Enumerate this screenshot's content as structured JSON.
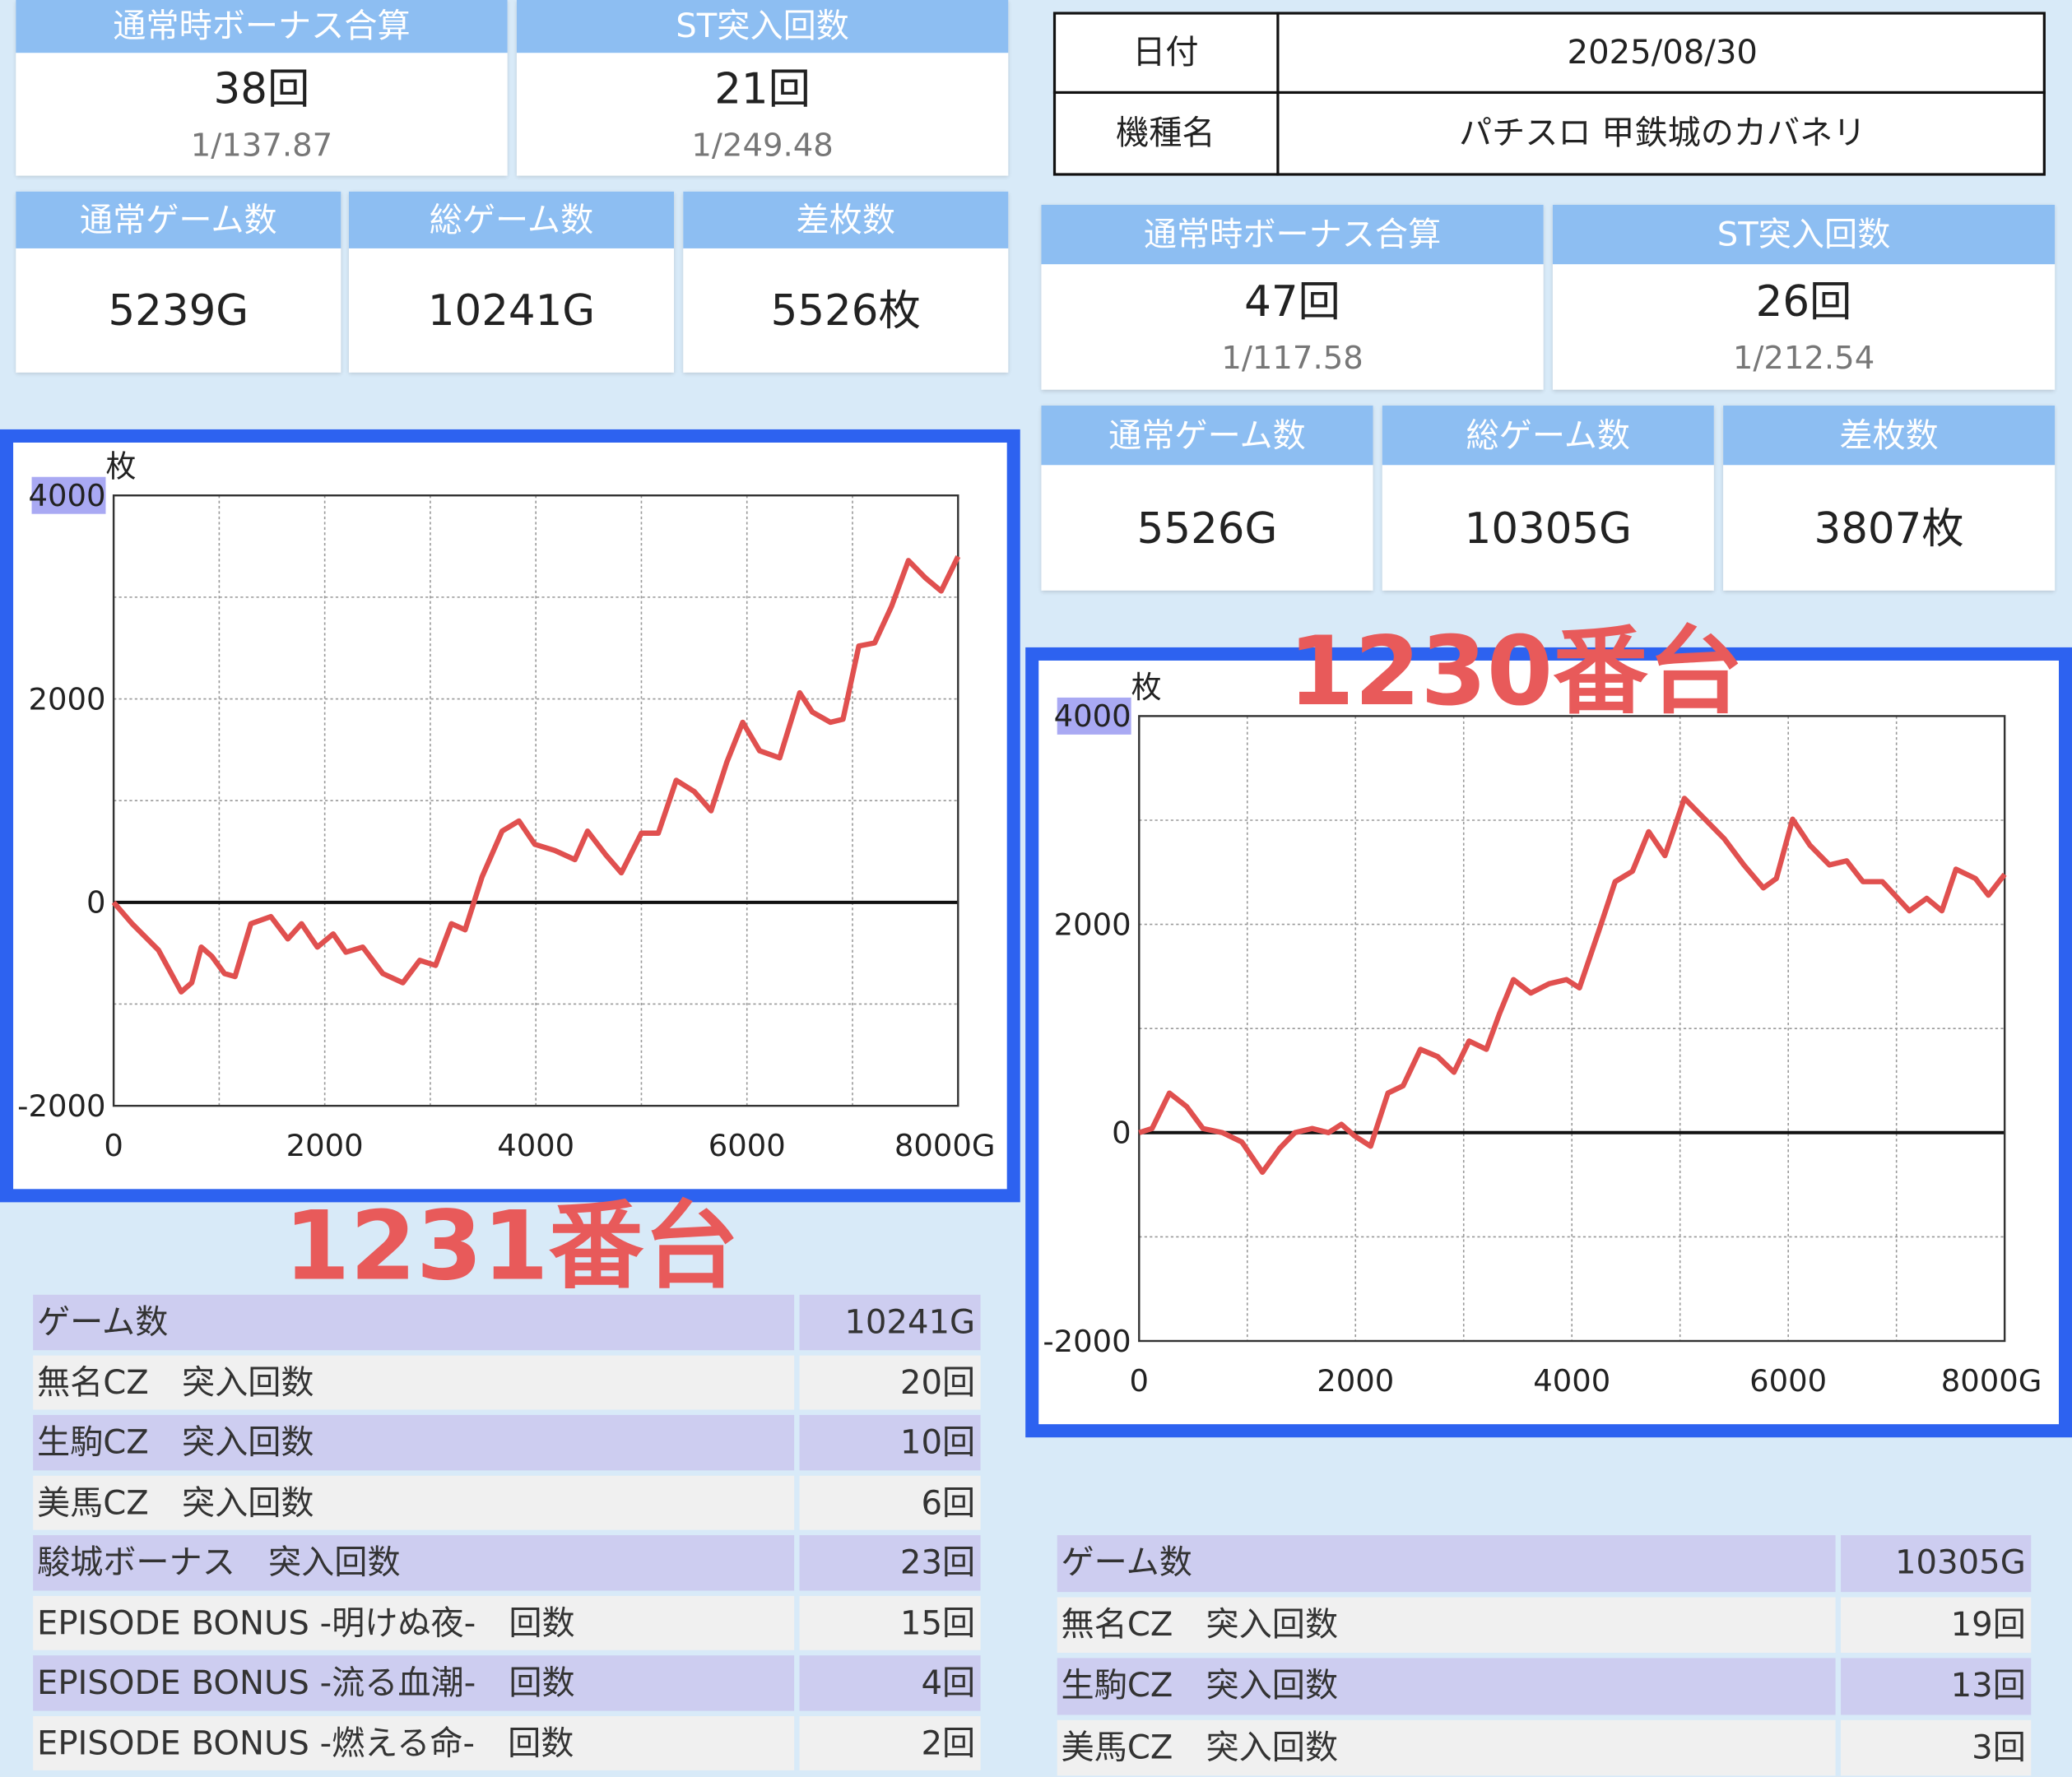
{
  "left": {
    "stats": [
      {
        "label": "通常時ボーナス合算",
        "value": "38回",
        "sub": "1/137.87"
      },
      {
        "label": "ST突入回数",
        "value": "21回",
        "sub": "1/249.48"
      }
    ],
    "games": [
      {
        "label": "通常ゲーム数",
        "value": "5239G"
      },
      {
        "label": "総ゲーム数",
        "value": "10241G"
      },
      {
        "label": "差枚数",
        "value": "5526枚"
      }
    ],
    "machine_label": "1231番台",
    "table": [
      [
        "ゲーム数",
        "10241G"
      ],
      [
        "無名CZ　突入回数",
        "20回"
      ],
      [
        "生駒CZ　突入回数",
        "10回"
      ],
      [
        "美馬CZ　突入回数",
        "6回"
      ],
      [
        "駿城ボーナス　突入回数",
        "23回"
      ],
      [
        "EPISODE BONUS -明けぬ夜-　回数",
        "15回"
      ],
      [
        "EPISODE BONUS -流る血潮-　回数",
        "4回"
      ],
      [
        "EPISODE BONUS -燃える命-　回数",
        "2回"
      ]
    ]
  },
  "right": {
    "info": [
      [
        "日付",
        "2025/08/30"
      ],
      [
        "機種名",
        "パチスロ 甲鉄城のカバネリ"
      ]
    ],
    "stats": [
      {
        "label": "通常時ボーナス合算",
        "value": "47回",
        "sub": "1/117.58"
      },
      {
        "label": "ST突入回数",
        "value": "26回",
        "sub": "1/212.54"
      }
    ],
    "games": [
      {
        "label": "通常ゲーム数",
        "value": "5526G"
      },
      {
        "label": "総ゲーム数",
        "value": "10305G"
      },
      {
        "label": "差枚数",
        "value": "3807枚"
      }
    ],
    "machine_label": "1230番台",
    "table": [
      [
        "ゲーム数",
        "10305G"
      ],
      [
        "無名CZ　突入回数",
        "19回"
      ],
      [
        "生駒CZ　突入回数",
        "13回"
      ],
      [
        "美馬CZ　突入回数",
        "3回"
      ]
    ]
  },
  "chart_data": [
    {
      "type": "line",
      "y_unit": "枚",
      "color": "#e0504f",
      "grid": true,
      "x": [
        0,
        175,
        425,
        640,
        740,
        830,
        930,
        1050,
        1150,
        1300,
        1490,
        1650,
        1780,
        1930,
        2080,
        2200,
        2360,
        2550,
        2740,
        2900,
        3050,
        3200,
        3330,
        3490,
        3680,
        3840,
        3990,
        4180,
        4370,
        4490,
        4660,
        4810,
        5000,
        5160,
        5330,
        5500,
        5660,
        5810,
        5960,
        6120,
        6310,
        6500,
        6620,
        6790,
        6910,
        7060,
        7210,
        7370,
        7530,
        7690,
        7840,
        8000
      ],
      "values": [
        0,
        -210,
        -470,
        -880,
        -790,
        -440,
        -530,
        -700,
        -730,
        -210,
        -140,
        -360,
        -210,
        -440,
        -310,
        -490,
        -440,
        -700,
        -790,
        -570,
        -620,
        -210,
        -270,
        250,
        700,
        800,
        570,
        510,
        420,
        700,
        470,
        290,
        680,
        680,
        1200,
        1090,
        900,
        1380,
        1770,
        1490,
        1420,
        2060,
        1870,
        1770,
        1800,
        2520,
        2550,
        2910,
        3360,
        3190,
        3060,
        3400
      ],
      "xlim": [
        0,
        8000
      ],
      "ylim": [
        -2000,
        4000
      ],
      "xticks": [
        0,
        2000,
        4000,
        6000,
        {
          "value": 8000,
          "label": "8000G"
        }
      ],
      "yticks": [
        -2000,
        0,
        2000,
        4000
      ],
      "xgrid": [
        0,
        1000,
        2000,
        3000,
        4000,
        5000,
        6000,
        7000,
        8000
      ],
      "ygrid": [
        -2000,
        -1000,
        0,
        1000,
        2000,
        3000,
        4000
      ]
    },
    {
      "type": "line",
      "y_unit": "枚",
      "color": "#e0504f",
      "grid": true,
      "x": [
        0,
        120,
        280,
        440,
        590,
        770,
        950,
        1140,
        1300,
        1440,
        1600,
        1750,
        1870,
        1990,
        2140,
        2300,
        2440,
        2600,
        2760,
        2910,
        3050,
        3210,
        3330,
        3460,
        3620,
        3790,
        3950,
        4070,
        4250,
        4400,
        4560,
        4710,
        4860,
        5040,
        5230,
        5410,
        5590,
        5770,
        5890,
        6040,
        6200,
        6380,
        6540,
        6690,
        6870,
        7120,
        7280,
        7420,
        7550,
        7730,
        7850,
        8000
      ],
      "values": [
        0,
        40,
        380,
        250,
        40,
        0,
        -90,
        -380,
        -150,
        0,
        40,
        0,
        80,
        -30,
        -130,
        380,
        450,
        800,
        730,
        580,
        880,
        800,
        1140,
        1470,
        1340,
        1430,
        1470,
        1390,
        1940,
        2410,
        2510,
        2890,
        2660,
        3210,
        3010,
        2820,
        2570,
        2350,
        2440,
        3010,
        2760,
        2570,
        2610,
        2410,
        2410,
        2130,
        2250,
        2130,
        2530,
        2440,
        2280,
        2480
      ],
      "xlim": [
        0,
        8000
      ],
      "ylim": [
        -2000,
        4000
      ],
      "xticks": [
        0,
        2000,
        4000,
        6000,
        {
          "value": 8000,
          "label": "8000G"
        }
      ],
      "yticks": [
        -2000,
        0,
        2000,
        4000
      ],
      "xgrid": [
        0,
        1000,
        2000,
        3000,
        4000,
        5000,
        6000,
        7000,
        8000
      ],
      "ygrid": [
        -2000,
        -1000,
        0,
        1000,
        2000,
        3000,
        4000
      ]
    }
  ]
}
